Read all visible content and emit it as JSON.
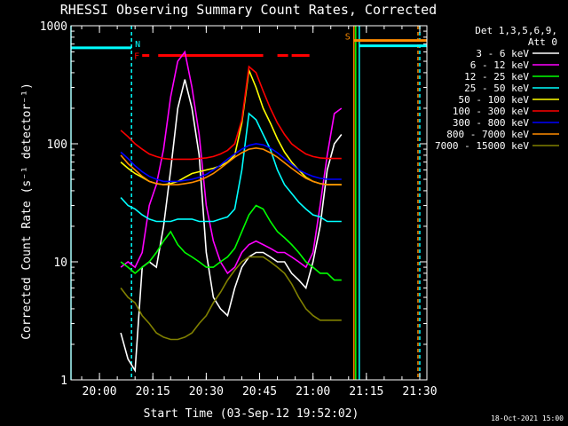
{
  "chart_data": {
    "type": "line",
    "title": "RHESSI Observing Summary Count Rates, Corrected",
    "xlabel": "Start Time (03-Sep-12 19:52:02)",
    "ylabel": "Corrected Count Rate (s⁻¹ detector⁻¹)",
    "x_unit": "minutes after 19:52:02",
    "xlim": [
      0,
      100
    ],
    "ylim": [
      1,
      1000
    ],
    "yscale": "log",
    "xticks": [
      {
        "label": "20:00",
        "x": 8
      },
      {
        "label": "20:15",
        "x": 23
      },
      {
        "label": "20:30",
        "x": 38
      },
      {
        "label": "20:45",
        "x": 53
      },
      {
        "label": "21:00",
        "x": 68
      },
      {
        "label": "21:15",
        "x": 83
      },
      {
        "label": "21:30",
        "x": 98
      }
    ],
    "yticks": [
      {
        "label": "1",
        "y": 1
      },
      {
        "label": "10",
        "y": 10
      },
      {
        "label": "100",
        "y": 100
      },
      {
        "label": "1000",
        "y": 1000
      }
    ],
    "legend_header": [
      "Det 1,3,5,6,9,",
      "Att 0"
    ],
    "legend_position": "top-right",
    "series": [
      {
        "name": "3 - 6 keV",
        "color": "#ffffff",
        "x": [
          14,
          16,
          18,
          20,
          22,
          24,
          26,
          28,
          30,
          32,
          34,
          36,
          38,
          40,
          42,
          44,
          46,
          48,
          50,
          52,
          54,
          56,
          58,
          60,
          62,
          64,
          66,
          68,
          70,
          72,
          74,
          76
        ],
        "y": [
          2.5,
          1.5,
          1.2,
          9,
          10,
          9,
          20,
          60,
          200,
          350,
          200,
          80,
          12,
          5,
          4,
          3.5,
          6,
          9,
          11,
          12,
          12,
          11,
          10,
          10,
          8,
          7,
          6,
          10,
          20,
          60,
          100,
          120
        ]
      },
      {
        "name": "6 - 12 keV",
        "color": "#ff00ff",
        "x": [
          14,
          16,
          18,
          20,
          22,
          24,
          26,
          28,
          30,
          32,
          34,
          36,
          38,
          40,
          42,
          44,
          46,
          48,
          50,
          52,
          54,
          56,
          58,
          60,
          62,
          64,
          66,
          68,
          70,
          72,
          74,
          76
        ],
        "y": [
          9,
          10,
          9,
          12,
          30,
          45,
          90,
          250,
          500,
          600,
          300,
          120,
          30,
          15,
          10,
          8,
          9,
          12,
          14,
          15,
          14,
          13,
          12,
          12,
          11,
          10,
          9,
          12,
          30,
          80,
          180,
          200
        ]
      },
      {
        "name": "12 - 25 keV",
        "color": "#00ff00",
        "x": [
          14,
          16,
          18,
          20,
          22,
          24,
          26,
          28,
          30,
          32,
          34,
          36,
          38,
          40,
          42,
          44,
          46,
          48,
          50,
          52,
          54,
          56,
          58,
          60,
          62,
          64,
          66,
          68,
          70,
          72,
          74,
          76
        ],
        "y": [
          10,
          9,
          8,
          9,
          10,
          12,
          15,
          18,
          14,
          12,
          11,
          10,
          9,
          9,
          10,
          11,
          13,
          18,
          25,
          30,
          28,
          22,
          18,
          16,
          14,
          12,
          10,
          9,
          8,
          8,
          7,
          7
        ]
      },
      {
        "name": "25 - 50 keV",
        "color": "#00ffff",
        "x": [
          14,
          16,
          18,
          20,
          22,
          24,
          26,
          28,
          30,
          32,
          34,
          36,
          38,
          40,
          42,
          44,
          46,
          48,
          50,
          52,
          54,
          56,
          58,
          60,
          62,
          64,
          66,
          68,
          70,
          72,
          74,
          76
        ],
        "y": [
          35,
          30,
          28,
          25,
          23,
          22,
          22,
          22,
          23,
          23,
          23,
          22,
          22,
          22,
          23,
          24,
          28,
          60,
          180,
          160,
          120,
          90,
          60,
          45,
          38,
          32,
          28,
          25,
          24,
          22,
          22,
          22
        ]
      },
      {
        "name": "50 - 100 keV",
        "color": "#ffff00",
        "x": [
          14,
          16,
          18,
          20,
          22,
          24,
          26,
          28,
          30,
          32,
          34,
          36,
          38,
          40,
          42,
          44,
          46,
          48,
          50,
          52,
          54,
          56,
          58,
          60,
          62,
          64,
          66,
          68,
          70,
          72,
          74,
          76
        ],
        "y": [
          70,
          62,
          56,
          52,
          48,
          46,
          45,
          46,
          48,
          52,
          56,
          58,
          60,
          62,
          65,
          70,
          80,
          150,
          420,
          300,
          200,
          150,
          110,
          85,
          70,
          60,
          52,
          48,
          46,
          45,
          45,
          45
        ]
      },
      {
        "name": "100 - 300 keV",
        "color": "#ff0000",
        "x": [
          14,
          16,
          18,
          20,
          22,
          24,
          26,
          28,
          30,
          32,
          34,
          36,
          38,
          40,
          42,
          44,
          46,
          48,
          50,
          52,
          54,
          56,
          58,
          60,
          62,
          64,
          66,
          68,
          70,
          72,
          74,
          76
        ],
        "y": [
          130,
          115,
          100,
          90,
          82,
          78,
          75,
          74,
          74,
          74,
          74,
          75,
          76,
          78,
          82,
          88,
          100,
          160,
          450,
          400,
          280,
          200,
          150,
          120,
          100,
          90,
          82,
          78,
          76,
          75,
          75,
          75
        ]
      },
      {
        "name": "300 - 800 keV",
        "color": "#0000ff",
        "x": [
          14,
          16,
          18,
          20,
          22,
          24,
          26,
          28,
          30,
          32,
          34,
          36,
          38,
          40,
          42,
          44,
          46,
          48,
          50,
          52,
          54,
          56,
          58,
          60,
          62,
          64,
          66,
          68,
          70,
          72,
          74,
          76
        ],
        "y": [
          85,
          75,
          65,
          58,
          53,
          50,
          48,
          48,
          48,
          49,
          50,
          52,
          55,
          60,
          66,
          74,
          82,
          90,
          97,
          100,
          98,
          92,
          84,
          75,
          67,
          60,
          56,
          53,
          51,
          50,
          50,
          50
        ]
      },
      {
        "name": "800 - 7000 keV",
        "color": "#ff8c00",
        "x": [
          14,
          16,
          18,
          20,
          22,
          24,
          26,
          28,
          30,
          32,
          34,
          36,
          38,
          40,
          42,
          44,
          46,
          48,
          50,
          52,
          54,
          56,
          58,
          60,
          62,
          64,
          66,
          68,
          70,
          72,
          74,
          76
        ],
        "y": [
          80,
          68,
          60,
          53,
          48,
          46,
          45,
          45,
          45,
          46,
          47,
          49,
          52,
          56,
          62,
          69,
          77,
          84,
          90,
          92,
          90,
          84,
          77,
          69,
          62,
          56,
          51,
          48,
          46,
          45,
          45,
          45
        ]
      },
      {
        "name": "7000 - 15000 keV",
        "color": "#808000",
        "x": [
          14,
          16,
          18,
          20,
          22,
          24,
          26,
          28,
          30,
          32,
          34,
          36,
          38,
          40,
          42,
          44,
          46,
          48,
          50,
          52,
          54,
          56,
          58,
          60,
          62,
          64,
          66,
          68,
          70,
          72,
          74,
          76
        ],
        "y": [
          6,
          5,
          4.5,
          3.5,
          3,
          2.5,
          2.3,
          2.2,
          2.2,
          2.3,
          2.5,
          3,
          3.5,
          4.5,
          5.5,
          7,
          8.5,
          10,
          11,
          11,
          11,
          10,
          9,
          8,
          6.5,
          5,
          4,
          3.5,
          3.2,
          3.2,
          3.2,
          3.2
        ]
      }
    ],
    "flare_intervals": {
      "label": "F",
      "color": "#ff0000",
      "y": 560,
      "segments": [
        [
          20,
          22
        ],
        [
          24.5,
          54
        ],
        [
          58,
          61
        ],
        [
          62,
          67
        ]
      ]
    },
    "att_state": {
      "label": "S",
      "color": "#ff8c00",
      "x": [
        79.5,
        100
      ],
      "y": 750
    },
    "night_marks": {
      "label": "N",
      "color": "#00ffff",
      "x": [
        0,
        17
      ],
      "y": 650
    },
    "vertical_markers": [
      {
        "x": 0,
        "color": "#00ffff",
        "style": "solid"
      },
      {
        "x": 17,
        "color": "#00ffff",
        "style": "dash"
      },
      {
        "x": 79.5,
        "color": "#ff8c00",
        "style": "solid"
      },
      {
        "x": 80,
        "color": "#00ff00",
        "style": "solid"
      },
      {
        "x": 81,
        "color": "#00ffff",
        "style": "solid"
      },
      {
        "x": 97.5,
        "color": "#ff8c00",
        "style": "dash"
      },
      {
        "x": 98,
        "color": "#00ffff",
        "style": "dash"
      }
    ]
  },
  "footer": {
    "timestamp": "18-Oct-2021 15:00"
  }
}
